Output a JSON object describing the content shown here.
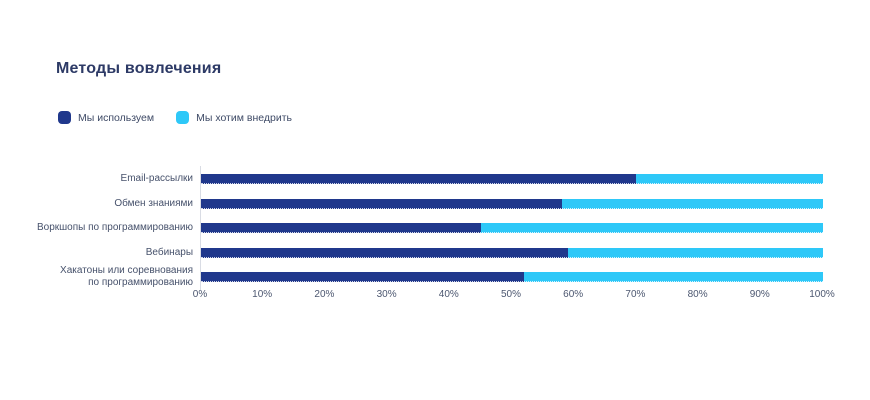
{
  "title": "Методы вовлечения",
  "colors": {
    "primary": "#20388c",
    "secondary": "#2ec8f8",
    "title_text": "#2d3a66",
    "label_text": "#46516b",
    "axis_line": "#d9dce4"
  },
  "legend": [
    {
      "label": "Мы используем",
      "color_key": "primary"
    },
    {
      "label": "Мы хотим внедрить",
      "color_key": "secondary"
    }
  ],
  "chart_data": {
    "type": "bar",
    "orientation": "horizontal",
    "stacked": true,
    "title": "Методы вовлечения",
    "categories": [
      "Email-рассылки",
      "Обмен знаниями",
      "Воркшопы по программированию",
      "Вебинары",
      "Хакатоны или соревнования\nпо программированию"
    ],
    "series": [
      {
        "name": "Мы используем",
        "color": "#20388c",
        "values": [
          70,
          58,
          45,
          59,
          52
        ]
      },
      {
        "name": "Мы хотим внедрить",
        "color": "#2ec8f8",
        "values": [
          30,
          42,
          55,
          41,
          48
        ]
      }
    ],
    "xlim": [
      0,
      100
    ],
    "x_ticks": [
      "0%",
      "10%",
      "20%",
      "30%",
      "40%",
      "50%",
      "60%",
      "70%",
      "80%",
      "90%",
      "100%"
    ],
    "xlabel": "",
    "ylabel": "",
    "legend_position": "top-left",
    "grid": false
  }
}
